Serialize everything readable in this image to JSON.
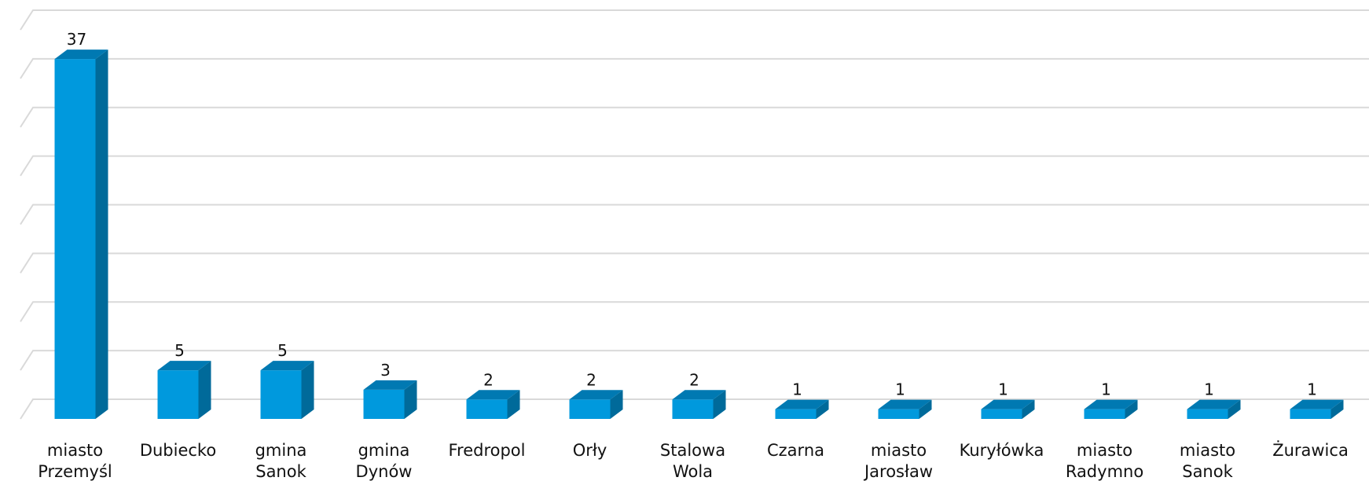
{
  "chart_data": {
    "type": "bar",
    "style": "3d-column",
    "categories": [
      [
        "miasto",
        "Przemyśl"
      ],
      [
        "Dubiecko"
      ],
      [
        "gmina",
        "Sanok"
      ],
      [
        "gmina",
        "Dynów"
      ],
      [
        "Fredropol"
      ],
      [
        "Orły"
      ],
      [
        "Stalowa",
        "Wola"
      ],
      [
        "Czarna"
      ],
      [
        "miasto",
        "Jarosław"
      ],
      [
        "Kuryłówka"
      ],
      [
        "miasto",
        "Radymno"
      ],
      [
        "miasto",
        "Sanok"
      ],
      [
        "Żurawica"
      ]
    ],
    "values": [
      37,
      5,
      5,
      3,
      2,
      2,
      2,
      1,
      1,
      1,
      1,
      1,
      1
    ],
    "data_labels": [
      "37",
      "5",
      "5",
      "3",
      "2",
      "2",
      "2",
      "1",
      "1",
      "1",
      "1",
      "1",
      "1"
    ],
    "title": "",
    "xlabel": "",
    "ylabel": "",
    "ylim": [
      0,
      40
    ],
    "y_tick_step": 5,
    "grid": true,
    "legend": "none",
    "colors": {
      "bar_front": "#0099DD",
      "bar_side": "#006A9A",
      "bar_top": "#0079B2",
      "grid": "#D9D9D9"
    }
  }
}
